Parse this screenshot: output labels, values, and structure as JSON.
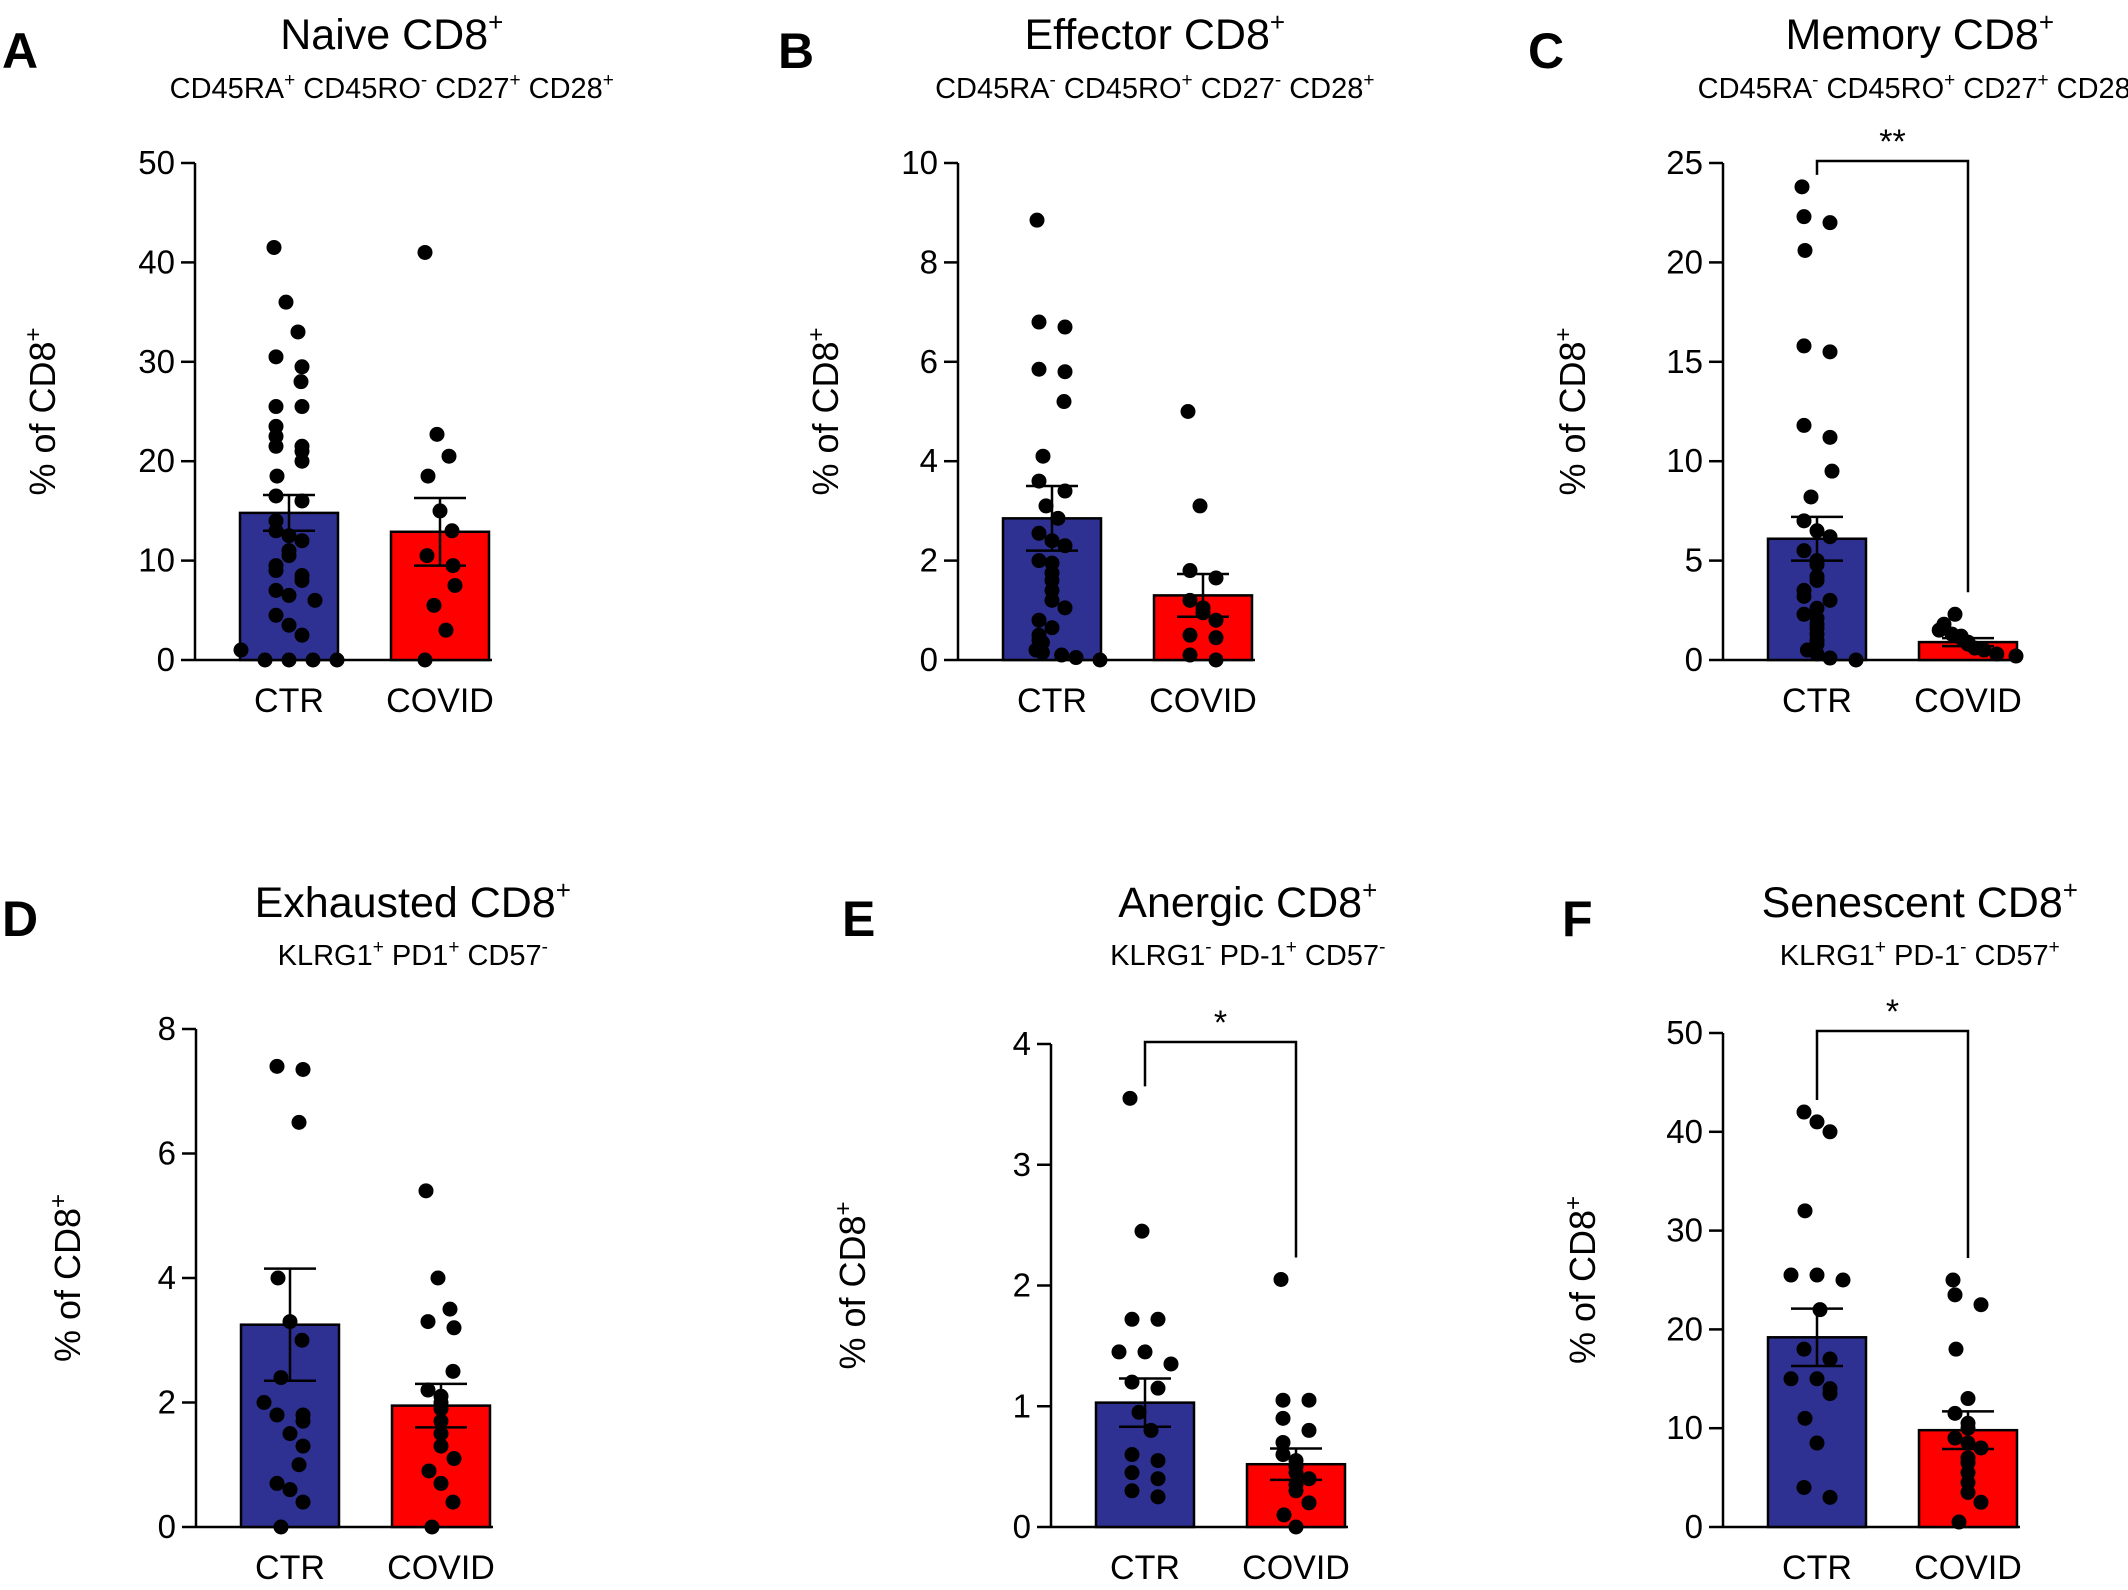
{
  "chart_data": [
    {
      "panel_letter": "A",
      "title": "Naive CD8",
      "title_sup": "+",
      "subtitle": [
        [
          "CD45RA",
          "+"
        ],
        [
          "CD45RO",
          "-"
        ],
        [
          "CD27",
          "+"
        ],
        [
          "CD28",
          "+"
        ]
      ],
      "type": "bar",
      "ylabel": "% of CD8",
      "ylabel_sup": "+",
      "categories": [
        "CTR",
        "COVID"
      ],
      "ylim": [
        0,
        50
      ],
      "yticks": [
        0,
        10,
        20,
        30,
        40,
        50
      ],
      "series": [
        {
          "category": "CTR",
          "color": "#2e3192",
          "mean": 14.8,
          "sem": 1.8,
          "points": [
            41.5,
            36,
            33,
            30.5,
            29.5,
            28,
            25.5,
            25.5,
            23.5,
            22.5,
            21.5,
            21.5,
            21,
            20,
            18.5,
            16.5,
            16,
            14,
            13,
            12.5,
            12,
            11,
            10.5,
            9.5,
            9,
            8.5,
            8,
            7,
            6.5,
            6,
            4.5,
            3.5,
            2.5,
            1,
            0,
            0,
            0,
            0
          ]
        },
        {
          "category": "COVID",
          "color": "#ff0000",
          "mean": 12.9,
          "sem": 3.4,
          "points": [
            41,
            22.7,
            20.5,
            18.5,
            15,
            13,
            10.5,
            9.5,
            7.5,
            5.5,
            3,
            0
          ]
        }
      ],
      "significance": null
    },
    {
      "panel_letter": "B",
      "title": "Effector CD8",
      "title_sup": "+",
      "subtitle": [
        [
          "CD45RA",
          "-"
        ],
        [
          "CD45RO",
          "+"
        ],
        [
          "CD27",
          "-"
        ],
        [
          "CD28",
          "+"
        ]
      ],
      "type": "bar",
      "ylabel": "% of CD8",
      "ylabel_sup": "+",
      "categories": [
        "CTR",
        "COVID"
      ],
      "ylim": [
        0,
        10
      ],
      "yticks": [
        0,
        2,
        4,
        6,
        8,
        10
      ],
      "series": [
        {
          "category": "CTR",
          "color": "#2e3192",
          "mean": 2.85,
          "sem": 0.65,
          "points": [
            8.85,
            6.8,
            6.7,
            5.85,
            5.8,
            5.2,
            4.1,
            3.6,
            3.4,
            3.1,
            2.85,
            2.55,
            2.4,
            2.3,
            2,
            1.95,
            1.75,
            1.6,
            1.4,
            1.2,
            1.05,
            0.8,
            0.65,
            0.5,
            0.4,
            0.35,
            0.2,
            0.15,
            0.1,
            0.05,
            0
          ]
        },
        {
          "category": "COVID",
          "color": "#ff0000",
          "mean": 1.3,
          "sem": 0.43,
          "points": [
            5,
            3.1,
            1.8,
            1.65,
            1.2,
            1.05,
            0.95,
            0.8,
            0.5,
            0.45,
            0.1,
            0
          ]
        }
      ],
      "significance": null
    },
    {
      "panel_letter": "C",
      "title": "Memory CD8",
      "title_sup": "+",
      "subtitle": [
        [
          "CD45RA",
          "-"
        ],
        [
          "CD45RO",
          "+"
        ],
        [
          "CD27",
          "+"
        ],
        [
          "CD28",
          "+"
        ]
      ],
      "type": "bar",
      "ylabel": "% of CD8",
      "ylabel_sup": "+",
      "categories": [
        "CTR",
        "COVID"
      ],
      "ylim": [
        0,
        25
      ],
      "yticks": [
        0,
        5,
        10,
        15,
        20,
        25
      ],
      "series": [
        {
          "category": "CTR",
          "color": "#2e3192",
          "mean": 6.1,
          "sem": 1.1,
          "points": [
            23.8,
            22.3,
            22,
            20.6,
            15.8,
            15.5,
            11.8,
            11.2,
            9.5,
            8.2,
            7,
            6.5,
            6.2,
            5.5,
            5,
            4.8,
            4.2,
            4,
            3.5,
            3.2,
            3,
            2.6,
            2.3,
            2.1,
            1.8,
            1.6,
            1.3,
            1,
            0.8,
            0.5,
            0.3,
            0.1,
            0
          ]
        },
        {
          "category": "COVID",
          "color": "#ff0000",
          "mean": 0.9,
          "sem": 0.2,
          "points": [
            2.3,
            1.8,
            1.5,
            1.3,
            1.2,
            1.1,
            0.9,
            0.8,
            0.6,
            0.5,
            0.3,
            0.2
          ]
        }
      ],
      "significance": "**"
    },
    {
      "panel_letter": "D",
      "title": "Exhausted CD8",
      "title_sup": "+",
      "subtitle": [
        [
          "KLRG1",
          "+"
        ],
        [
          "PD1",
          "+"
        ],
        [
          "CD57",
          "-"
        ]
      ],
      "type": "bar",
      "ylabel": "% of CD8",
      "ylabel_sup": "+",
      "categories": [
        "CTR",
        "COVID"
      ],
      "ylim": [
        0,
        8
      ],
      "yticks": [
        0,
        2,
        4,
        6,
        8
      ],
      "series": [
        {
          "category": "CTR",
          "color": "#2e3192",
          "mean": 3.25,
          "sem": 0.9,
          "points": [
            7.4,
            7.35,
            6.5,
            4,
            3.3,
            3,
            2.4,
            2,
            1.8,
            1.8,
            1.7,
            1.5,
            1.3,
            1,
            0.7,
            0.6,
            0.4,
            0
          ]
        },
        {
          "category": "COVID",
          "color": "#ff0000",
          "mean": 1.95,
          "sem": 0.35,
          "points": [
            5.4,
            4,
            3.5,
            3.3,
            3.2,
            2.5,
            2.2,
            2.1,
            2,
            1.9,
            1.7,
            1.5,
            1.3,
            1.1,
            0.9,
            0.7,
            0.4,
            0
          ]
        }
      ],
      "significance": null
    },
    {
      "panel_letter": "E",
      "title": "Anergic CD8",
      "title_sup": "+",
      "subtitle": [
        [
          "KLRG1",
          "-"
        ],
        [
          "PD-1",
          "+"
        ],
        [
          "CD57",
          "-"
        ]
      ],
      "type": "bar",
      "ylabel": "% of CD8",
      "ylabel_sup": "+",
      "categories": [
        "CTR",
        "COVID"
      ],
      "ylim": [
        0,
        4
      ],
      "yticks": [
        0,
        1,
        2,
        3,
        4
      ],
      "series": [
        {
          "category": "CTR",
          "color": "#2e3192",
          "mean": 1.03,
          "sem": 0.2,
          "points": [
            3.55,
            2.45,
            1.72,
            1.72,
            1.45,
            1.45,
            1.35,
            1.2,
            1.15,
            0.95,
            0.8,
            0.6,
            0.55,
            0.45,
            0.4,
            0.3,
            0.25
          ]
        },
        {
          "category": "COVID",
          "color": "#ff0000",
          "mean": 0.52,
          "sem": 0.13,
          "points": [
            2.05,
            1.05,
            1.05,
            0.9,
            0.8,
            0.7,
            0.6,
            0.55,
            0.5,
            0.45,
            0.4,
            0.35,
            0.3,
            0.2,
            0.1,
            0
          ]
        }
      ],
      "significance": "*"
    },
    {
      "panel_letter": "F",
      "title": "Senescent CD8",
      "title_sup": "+",
      "subtitle": [
        [
          "KLRG1",
          "+"
        ],
        [
          "PD-1",
          "-"
        ],
        [
          "CD57",
          "+"
        ]
      ],
      "type": "bar",
      "ylabel": "% of CD8",
      "ylabel_sup": "+",
      "categories": [
        "CTR",
        "COVID"
      ],
      "ylim": [
        0,
        50
      ],
      "yticks": [
        0,
        10,
        20,
        30,
        40,
        50
      ],
      "series": [
        {
          "category": "CTR",
          "color": "#2e3192",
          "mean": 19.2,
          "sem": 2.9,
          "points": [
            42,
            41,
            40,
            32,
            25.5,
            25.5,
            25,
            22,
            18,
            17,
            15,
            15,
            14,
            13.5,
            11,
            8.5,
            4,
            3
          ]
        },
        {
          "category": "COVID",
          "color": "#ff0000",
          "mean": 9.8,
          "sem": 1.9,
          "points": [
            25,
            23.5,
            22.5,
            18,
            13,
            11.5,
            10.5,
            10,
            9,
            8.5,
            8,
            7,
            6.5,
            5.5,
            4.5,
            3.5,
            2.5,
            0.5
          ]
        }
      ],
      "significance": "*"
    }
  ]
}
